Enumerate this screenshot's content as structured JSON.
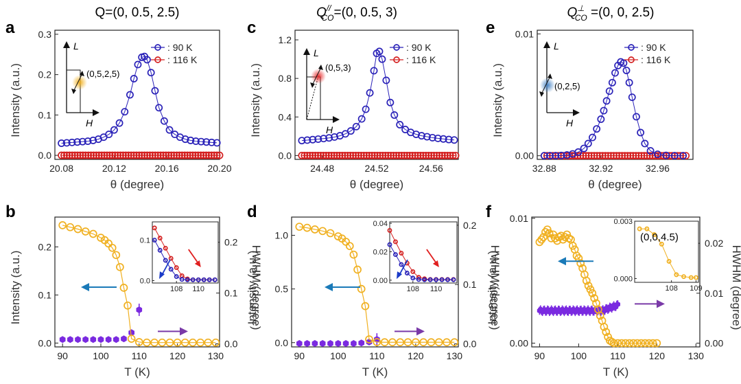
{
  "colors": {
    "blue": "#2a22b8",
    "red": "#d42020",
    "orange": "#f0b020",
    "purple": "#7a2ae0",
    "arrow_blue": "#1a7ab8",
    "arrow_purple": "#7a3aa8",
    "arrow_red": "#e02020",
    "arrow_navy": "#1a3ac8"
  },
  "chart_data": [
    {
      "id": "a",
      "panel_label": "a",
      "type": "scatter",
      "title": "Q=(0, 0.5, 2.5)",
      "xlabel": "θ (degree)",
      "ylabel": "Intensity (a.u.)",
      "xlim": [
        20.075,
        20.2
      ],
      "ylim": [
        -0.01,
        0.31
      ],
      "xticks": [
        20.08,
        20.12,
        20.16,
        20.2
      ],
      "xtick_labels": [
        "20.08",
        "20.12",
        "20.16",
        "20.20"
      ],
      "yticks": [
        0,
        0.1,
        0.2,
        0.3
      ],
      "ytick_labels": [
        "0.0",
        "0.1",
        "0.2",
        "0.3"
      ],
      "legend": [
        "90 K",
        "116 K"
      ],
      "legend_prefix": ": ",
      "legend_position": "top-right",
      "peak": {
        "center": 20.143,
        "height": 0.216,
        "width": 0.006,
        "background": 0.029,
        "slope": 0.05
      },
      "peak_x": [
        20.08,
        20.084,
        20.088,
        20.092,
        20.096,
        20.1,
        20.104,
        20.108,
        20.112,
        20.116,
        20.12,
        20.124,
        20.128,
        20.132,
        20.135,
        20.138,
        20.141,
        20.143,
        20.145,
        20.148,
        20.151,
        20.154,
        20.158,
        20.162,
        20.166,
        20.17,
        20.174,
        20.178,
        20.182,
        20.186,
        20.19,
        20.194,
        20.198
      ],
      "series": [
        {
          "name": "90 K",
          "color": "#2a22b8",
          "y": [
            0.03,
            0.031,
            0.032,
            0.033,
            0.034,
            0.035,
            0.037,
            0.04,
            0.045,
            0.052,
            0.063,
            0.08,
            0.108,
            0.15,
            0.19,
            0.225,
            0.243,
            0.245,
            0.237,
            0.205,
            0.16,
            0.118,
            0.085,
            0.063,
            0.052,
            0.045,
            0.04,
            0.037,
            0.035,
            0.034,
            0.033,
            0.032,
            0.031
          ]
        },
        {
          "name": "116 K",
          "color": "#d42020",
          "flat": 0.0,
          "x_start": 20.08,
          "x_end": 20.2,
          "n": 60
        }
      ],
      "inset": {
        "type": "schematic",
        "point_label": "(0,5,2,5)",
        "axis_v": "L",
        "axis_h": "H",
        "spot_color": "#f0b020"
      }
    },
    {
      "id": "c",
      "panel_label": "c",
      "type": "scatter",
      "title_main": "Q",
      "title_sup": "//",
      "title_sub": "CO",
      "title_rest": "=(0, 0.5, 3)",
      "xlabel": "θ (degree)",
      "ylabel": "Intensity (a.u.)",
      "xlim": [
        24.46,
        24.58
      ],
      "ylim": [
        -0.04,
        1.3
      ],
      "xticks": [
        24.48,
        24.52,
        24.56
      ],
      "xtick_labels": [
        "24.48",
        "24.52",
        "24.56"
      ],
      "yticks": [
        0,
        0.4,
        0.8,
        1.2
      ],
      "ytick_labels": [
        "0.0",
        "0.4",
        "0.8",
        "1.2"
      ],
      "legend": [
        "90 K",
        "116 K"
      ],
      "legend_prefix": ": ",
      "legend_position": "top-right",
      "peak_x": [
        24.465,
        24.469,
        24.473,
        24.477,
        24.481,
        24.485,
        24.489,
        24.493,
        24.497,
        24.501,
        24.505,
        24.509,
        24.512,
        24.515,
        24.518,
        24.52,
        24.522,
        24.524,
        24.527,
        24.53,
        24.533,
        24.537,
        24.541,
        24.545,
        24.549,
        24.553,
        24.557,
        24.561,
        24.565,
        24.569,
        24.573,
        24.577
      ],
      "series": [
        {
          "name": "90 K",
          "color": "#2a22b8",
          "y": [
            0.155,
            0.16,
            0.165,
            0.17,
            0.176,
            0.183,
            0.192,
            0.205,
            0.225,
            0.255,
            0.3,
            0.38,
            0.48,
            0.65,
            0.88,
            1.06,
            1.08,
            1.0,
            0.78,
            0.55,
            0.42,
            0.32,
            0.27,
            0.24,
            0.22,
            0.205,
            0.195,
            0.185,
            0.178,
            0.172,
            0.166,
            0.161
          ]
        },
        {
          "name": "116 K",
          "color": "#d42020",
          "flat": 0.0,
          "x_start": 24.465,
          "x_end": 24.578,
          "n": 58
        }
      ],
      "inset": {
        "type": "schematic",
        "point_label": "(0,5,3)",
        "axis_v": "L",
        "axis_h": "H",
        "spot_color": "#e03030"
      }
    },
    {
      "id": "e",
      "panel_label": "e",
      "type": "scatter",
      "title_main": "Q",
      "title_sup": "⊥",
      "title_sub": "CO",
      "title_rest": " =(0, 0, 2.5)",
      "xlabel": "θ (degree)",
      "ylabel": "Intensity (a.u.)",
      "xlim": [
        32.875,
        32.985
      ],
      "ylim": [
        -0.0003,
        0.0103
      ],
      "xticks": [
        32.88,
        32.92,
        32.96
      ],
      "xtick_labels": [
        "32.88",
        "32.92",
        "32.96"
      ],
      "yticks": [
        0,
        0.01
      ],
      "ytick_labels": [
        "0.00",
        "0.01"
      ],
      "legend": [
        "90 K",
        "116 K"
      ],
      "legend_prefix": ": ",
      "legend_position": "top-right",
      "peak_x": [
        32.88,
        32.884,
        32.888,
        32.892,
        32.896,
        32.9,
        32.904,
        32.908,
        32.911,
        32.914,
        32.917,
        32.92,
        32.922,
        32.924,
        32.926,
        32.928,
        32.93,
        32.932,
        32.934,
        32.936,
        32.938,
        32.94,
        32.942,
        32.945,
        32.948,
        32.951,
        32.955,
        32.96,
        32.966,
        32.972,
        32.978
      ],
      "series": [
        {
          "name": "90 K",
          "color": "#2a22b8",
          "y": [
            0.0,
            0.0,
            0.0,
            2e-05,
            6e-05,
            0.00015,
            0.0003,
            0.0006,
            0.001,
            0.0015,
            0.0022,
            0.003,
            0.0037,
            0.0045,
            0.0053,
            0.006,
            0.0068,
            0.0074,
            0.0077,
            0.0076,
            0.007,
            0.006,
            0.0048,
            0.0032,
            0.0019,
            0.001,
            0.0004,
            0.00012,
            3e-05,
            0.0,
            0.0
          ]
        },
        {
          "name": "116 K",
          "color": "#d42020",
          "flat": 0.0,
          "x_start": 32.88,
          "x_end": 32.98,
          "n": 52
        }
      ],
      "inset": {
        "type": "schematic",
        "point_label": "(0,2,5)",
        "axis_v": "L",
        "axis_h": "H",
        "spot_color": "#5a90c8"
      }
    },
    {
      "id": "b",
      "panel_label": "b",
      "type": "scatter",
      "xlabel": "T (K)",
      "ylabel": "Intensity (a.u.)",
      "ylabel_right": "HWHM (degree)",
      "xlim": [
        88,
        131
      ],
      "ylim": [
        -0.008,
        0.262
      ],
      "ylim_right": [
        -0.006,
        0.2496
      ],
      "xticks": [
        90,
        100,
        110,
        120,
        130
      ],
      "xtick_labels": [
        "90",
        "100",
        "110",
        "120",
        "130"
      ],
      "yticks": [
        0,
        0.1,
        0.2
      ],
      "ytick_labels": [
        "0.0",
        "0.1",
        "0.2"
      ],
      "yticks_right": [
        0,
        0.1,
        0.2
      ],
      "ytick_labels_right": [
        "0.0",
        "0.1",
        "0.2"
      ],
      "intensity": {
        "color": "#f0b020",
        "x": [
          90,
          92,
          94,
          96,
          98,
          100,
          101,
          102,
          103,
          104,
          105,
          106,
          107,
          108,
          110,
          112,
          114,
          116,
          118,
          120,
          122,
          124,
          126,
          128,
          130
        ],
        "y": [
          0.245,
          0.241,
          0.237,
          0.232,
          0.227,
          0.219,
          0.214,
          0.207,
          0.198,
          0.183,
          0.158,
          0.115,
          0.078,
          0.009,
          0.002,
          0.001,
          0.001,
          0.001,
          0.001,
          0.001,
          0.001,
          0.001,
          0.001,
          0.001,
          0.001
        ]
      },
      "hwhm": {
        "color": "#7a2ae0",
        "x": [
          90,
          92,
          94,
          96,
          98,
          100,
          102,
          104,
          106,
          108,
          110
        ],
        "y": [
          0.0085,
          0.0085,
          0.0085,
          0.0085,
          0.0085,
          0.0085,
          0.0085,
          0.0085,
          0.01,
          0.022,
          0.067
        ]
      },
      "inset": {
        "type": "line",
        "xlim": [
          105.8,
          111.8
        ],
        "ylim": [
          -0.006,
          0.145
        ],
        "xticks": [
          108,
          110
        ],
        "xtick_labels": [
          "108",
          "110"
        ],
        "yticks": [
          0,
          0.1
        ],
        "ytick_labels": [
          "0.0",
          "0.1"
        ],
        "series": [
          {
            "color": "#d42020",
            "x": [
              106,
              106.5,
              107,
              107.5,
              108,
              108.5,
              109,
              109.5,
              110,
              110.5,
              111,
              111.5
            ],
            "y": [
              0.13,
              0.105,
              0.08,
              0.055,
              0.032,
              0.012,
              0.004,
              0.002,
              0.002,
              0.002,
              0.002,
              0.002
            ]
          },
          {
            "color": "#2a22b8",
            "x": [
              106,
              106.5,
              107,
              107.5,
              108,
              108.5,
              109,
              109.5,
              110,
              110.5,
              111,
              111.5
            ],
            "y": [
              0.1,
              0.075,
              0.05,
              0.028,
              0.01,
              0.003,
              0.002,
              0.002,
              0.002,
              0.002,
              0.002,
              0.002
            ]
          }
        ]
      }
    },
    {
      "id": "d",
      "panel_label": "d",
      "type": "scatter",
      "xlabel": "T (K)",
      "ylabel": "Intensity (a.u.)",
      "ylabel_right": "HWHM (degree)",
      "xlim": [
        88,
        131
      ],
      "ylim": [
        -0.04,
        1.17
      ],
      "ylim_right": [
        -0.00513,
        0.2137
      ],
      "xticks": [
        90,
        100,
        110,
        120,
        130
      ],
      "xtick_labels": [
        "90",
        "100",
        "110",
        "120",
        "130"
      ],
      "yticks": [
        0,
        0.5,
        1.0
      ],
      "ytick_labels": [
        "0.0",
        "0.5",
        "1.0"
      ],
      "yticks_right": [
        0,
        0.1,
        0.2
      ],
      "ytick_labels_right": [
        "0.0",
        "0.1",
        "0.2"
      ],
      "intensity": {
        "color": "#f0b020",
        "x": [
          90,
          92,
          94,
          96,
          98,
          100,
          101,
          102,
          103,
          104,
          105,
          106,
          107,
          108,
          110,
          112,
          114,
          116,
          118,
          120,
          122,
          124,
          126,
          128,
          130
        ],
        "y": [
          1.08,
          1.07,
          1.055,
          1.04,
          1.02,
          0.99,
          0.97,
          0.94,
          0.9,
          0.82,
          0.68,
          0.5,
          0.34,
          0.03,
          0.005,
          0.003,
          0.003,
          0.003,
          0.003,
          0.003,
          0.003,
          0.003,
          0.003,
          0.003,
          0.003
        ]
      },
      "hwhm": {
        "color": "#7a2ae0",
        "x": [
          90,
          92,
          94,
          96,
          98,
          100,
          102,
          104,
          106,
          108,
          110
        ],
        "y": [
          0.0007,
          0.0007,
          0.0007,
          0.0007,
          0.0007,
          0.0007,
          0.0007,
          0.0007,
          0.0016,
          0.0031,
          0.0075
        ]
      },
      "inset": {
        "type": "line",
        "xlim": [
          106,
          111.8
        ],
        "ylim": [
          -0.002,
          0.041
        ],
        "xticks": [
          108,
          110
        ],
        "xtick_labels": [
          "108",
          "110"
        ],
        "yticks": [
          0,
          0.02,
          0.04
        ],
        "ytick_labels": [
          "0.00",
          "0.02",
          "0.04"
        ],
        "series": [
          {
            "color": "#d42020",
            "x": [
              106,
              106.5,
              107,
              107.5,
              108,
              108.5,
              109,
              109.5,
              110,
              110.5,
              111,
              111.5
            ],
            "y": [
              0.035,
              0.027,
              0.019,
              0.012,
              0.006,
              0.002,
              0.001,
              0.0005,
              0.0005,
              0.0005,
              0.0005,
              0.0005
            ]
          },
          {
            "color": "#2a22b8",
            "x": [
              106,
              106.5,
              107,
              107.5,
              108,
              108.5,
              109,
              109.5,
              110,
              110.5,
              111,
              111.5
            ],
            "y": [
              0.025,
              0.018,
              0.011,
              0.005,
              0.0015,
              0.0005,
              0.0003,
              0.0003,
              0.0003,
              0.0003,
              0.0003,
              0.0003
            ]
          }
        ]
      }
    },
    {
      "id": "f",
      "panel_label": "f",
      "type": "scatter",
      "xlabel": "T (K)",
      "ylabel": "Intensity (a.u.)",
      "ylabel_right": "HWHM (degree)",
      "xlim": [
        88,
        131
      ],
      "ylim": [
        -0.0003,
        0.0101
      ],
      "ylim_right": [
        -0.00075,
        0.02525
      ],
      "xticks": [
        90,
        100,
        110,
        120,
        130
      ],
      "xtick_labels": [
        "90",
        "100",
        "110",
        "120",
        "130"
      ],
      "yticks": [
        0,
        0.01
      ],
      "ytick_labels": [
        "0.00",
        "0.01"
      ],
      "yticks_right": [
        0,
        0.01,
        0.02
      ],
      "ytick_labels_right": [
        "0.00",
        "0.01",
        "0.02"
      ],
      "intensity": {
        "color": "#f0b020",
        "x": [
          90,
          90.5,
          91,
          91.5,
          92,
          92.5,
          93,
          93.5,
          94,
          94.5,
          95,
          95.5,
          96,
          96.5,
          97,
          97.5,
          98,
          98.5,
          99,
          99.5,
          100,
          100.5,
          101,
          101.5,
          102,
          102.5,
          103,
          103.5,
          104,
          104.5,
          105,
          105.5,
          106,
          106.5,
          107,
          107.5,
          108,
          108.5,
          109,
          110,
          111,
          112,
          113,
          114,
          115,
          116,
          117,
          118,
          119,
          120
        ],
        "y": [
          0.0081,
          0.0083,
          0.0085,
          0.0089,
          0.0091,
          0.0088,
          0.0084,
          0.0087,
          0.0084,
          0.0082,
          0.0085,
          0.0086,
          0.0083,
          0.0085,
          0.0087,
          0.0084,
          0.0083,
          0.0078,
          0.0075,
          0.007,
          0.0068,
          0.0064,
          0.006,
          0.0055,
          0.005,
          0.0046,
          0.0043,
          0.004,
          0.0036,
          0.0032,
          0.0027,
          0.0022,
          0.0018,
          0.0013,
          0.0009,
          0.0005,
          0.0002,
          0.0001,
          0.0,
          0.0,
          0.0,
          0.0,
          0.0,
          0.0,
          0.0,
          0.0,
          0.0,
          0.0,
          0.0,
          0.0
        ]
      },
      "hwhm": {
        "color": "#7a2ae0",
        "start": 90,
        "end": 110,
        "n": 80,
        "level": 0.0065,
        "rise_start": 106,
        "rise_end": 0.0076
      },
      "inset": {
        "type": "line",
        "label": "(0,0,4.5)",
        "xlim": [
          106.5,
          109.1
        ],
        "ylim": [
          -0.0002,
          0.003
        ],
        "xticks": [
          108,
          109
        ],
        "xtick_labels": [
          "108",
          "109"
        ],
        "yticks": [
          0,
          0.003
        ],
        "ytick_labels": [
          "0.000",
          "0.003"
        ],
        "series": [
          {
            "color": "#f0b020",
            "x": [
              106.7,
              107,
              107.3,
              107.6,
              107.9,
              108.2,
              108.5,
              108.8,
              109.0
            ],
            "y": [
              0.0026,
              0.0026,
              0.0023,
              0.0018,
              0.0009,
              0.0002,
              0.0001,
              5e-05,
              5e-05
            ]
          }
        ]
      }
    }
  ]
}
